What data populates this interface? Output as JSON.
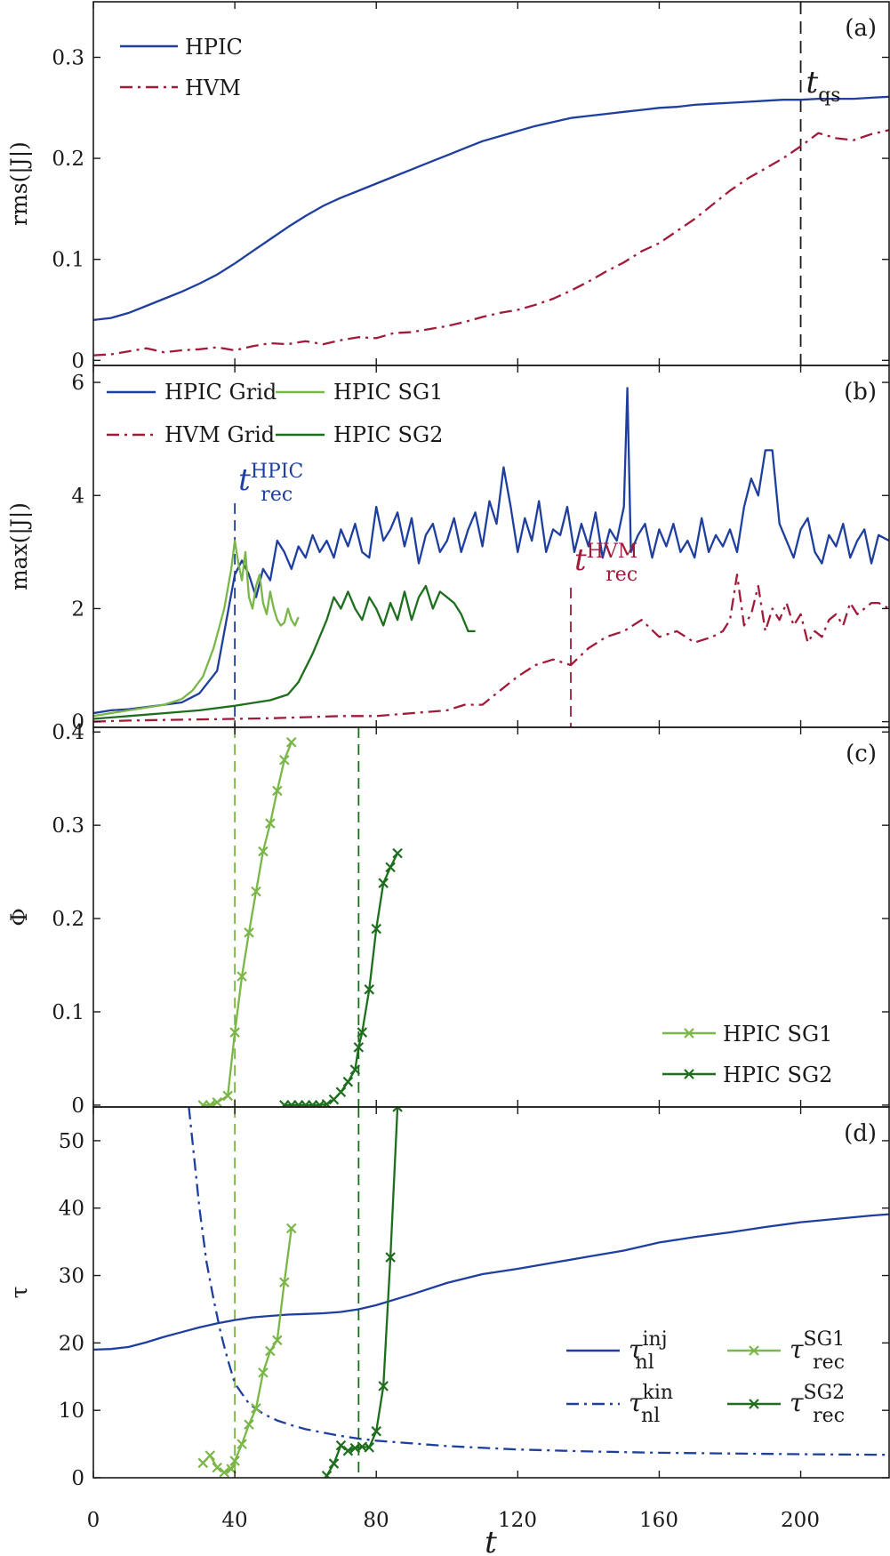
{
  "figure": {
    "x_tick_labels": [
      "0",
      "40",
      "80",
      "120",
      "160",
      "200"
    ],
    "x_label": "t"
  },
  "chart_data": [
    {
      "type": "line",
      "panel": "(a)",
      "ylabel": "rms(|J|)",
      "xlim": [
        0,
        225
      ],
      "ylim": [
        -0.005,
        0.355
      ],
      "y_ticks": [
        0,
        0.1,
        0.2,
        0.3
      ],
      "y_tick_labels": [
        "0",
        "0.1",
        "0.2",
        "0.3"
      ],
      "legend_position": "top-left",
      "series": [
        {
          "name": "HPIC",
          "color": "#1f3f9f",
          "style": "solid",
          "x": [
            0,
            5,
            10,
            15,
            20,
            25,
            30,
            35,
            40,
            45,
            50,
            55,
            60,
            65,
            70,
            75,
            80,
            85,
            90,
            95,
            100,
            105,
            110,
            115,
            120,
            125,
            130,
            135,
            140,
            145,
            150,
            155,
            160,
            165,
            170,
            175,
            180,
            185,
            190,
            195,
            200,
            205,
            210,
            215,
            220,
            225
          ],
          "y": [
            0.04,
            0.042,
            0.047,
            0.054,
            0.061,
            0.068,
            0.076,
            0.085,
            0.096,
            0.108,
            0.12,
            0.132,
            0.143,
            0.153,
            0.161,
            0.168,
            0.175,
            0.182,
            0.189,
            0.196,
            0.203,
            0.21,
            0.217,
            0.222,
            0.227,
            0.232,
            0.236,
            0.24,
            0.242,
            0.244,
            0.246,
            0.248,
            0.25,
            0.251,
            0.253,
            0.254,
            0.255,
            0.256,
            0.257,
            0.258,
            0.258,
            0.259,
            0.259,
            0.259,
            0.26,
            0.261
          ]
        },
        {
          "name": "HVM",
          "color": "#a01a3a",
          "style": "dashdot",
          "x": [
            0,
            5,
            10,
            15,
            20,
            25,
            30,
            35,
            40,
            45,
            50,
            55,
            60,
            65,
            70,
            75,
            80,
            85,
            90,
            95,
            100,
            105,
            110,
            115,
            120,
            125,
            130,
            135,
            140,
            145,
            150,
            155,
            160,
            165,
            170,
            175,
            180,
            185,
            190,
            195,
            200,
            205,
            210,
            215,
            220,
            225
          ],
          "y": [
            0.005,
            0.006,
            0.009,
            0.012,
            0.008,
            0.01,
            0.011,
            0.013,
            0.01,
            0.014,
            0.017,
            0.016,
            0.019,
            0.016,
            0.02,
            0.023,
            0.022,
            0.027,
            0.028,
            0.031,
            0.034,
            0.038,
            0.043,
            0.047,
            0.05,
            0.055,
            0.061,
            0.069,
            0.078,
            0.088,
            0.097,
            0.108,
            0.116,
            0.128,
            0.14,
            0.154,
            0.168,
            0.18,
            0.19,
            0.2,
            0.212,
            0.225,
            0.22,
            0.218,
            0.224,
            0.228
          ]
        }
      ],
      "annotations": [
        {
          "text": "t",
          "subscript": "qs",
          "x": 200,
          "line_color": "#1a1a1a"
        }
      ]
    },
    {
      "type": "line",
      "panel": "(b)",
      "ylabel": "max(|J|)",
      "xlim": [
        0,
        225
      ],
      "ylim": [
        -0.1,
        6.3
      ],
      "y_ticks": [
        0,
        2,
        4,
        6
      ],
      "y_tick_labels": [
        "0",
        "2",
        "4",
        "6"
      ],
      "legend_position": "top-left",
      "series": [
        {
          "name": "HPIC Grid",
          "color": "#1f3f9f",
          "style": "solid",
          "x": [
            0,
            5,
            10,
            15,
            20,
            25,
            30,
            35,
            40,
            42,
            44,
            46,
            48,
            50,
            52,
            54,
            56,
            58,
            60,
            62,
            64,
            66,
            68,
            70,
            72,
            74,
            76,
            78,
            80,
            82,
            84,
            86,
            88,
            90,
            92,
            94,
            96,
            98,
            100,
            102,
            104,
            106,
            108,
            110,
            112,
            114,
            116,
            118,
            120,
            122,
            124,
            126,
            128,
            130,
            132,
            134,
            136,
            138,
            140,
            142,
            144,
            146,
            148,
            150,
            151,
            152,
            154,
            156,
            158,
            160,
            162,
            164,
            166,
            168,
            170,
            172,
            174,
            176,
            178,
            180,
            182,
            184,
            186,
            188,
            190,
            192,
            194,
            196,
            198,
            200,
            202,
            204,
            206,
            208,
            210,
            212,
            214,
            216,
            218,
            220,
            222,
            225
          ],
          "y": [
            0.15,
            0.2,
            0.22,
            0.26,
            0.3,
            0.34,
            0.5,
            0.9,
            2.6,
            2.85,
            2.6,
            2.2,
            2.7,
            2.5,
            3.2,
            3.0,
            2.7,
            3.1,
            2.9,
            3.3,
            3.0,
            3.2,
            2.9,
            3.4,
            3.1,
            3.5,
            3.0,
            2.9,
            3.8,
            3.2,
            3.4,
            3.7,
            3.1,
            3.6,
            2.8,
            3.3,
            3.5,
            3.0,
            3.2,
            3.6,
            3.0,
            3.4,
            3.7,
            3.1,
            3.9,
            3.5,
            4.5,
            3.8,
            3.0,
            3.6,
            3.2,
            3.9,
            3.0,
            3.4,
            3.3,
            3.8,
            3.0,
            3.5,
            3.1,
            3.7,
            2.9,
            3.4,
            3.2,
            3.8,
            5.9,
            3.0,
            3.3,
            3.5,
            2.9,
            3.4,
            3.1,
            3.5,
            3.0,
            3.2,
            2.9,
            3.6,
            3.0,
            3.3,
            3.1,
            3.4,
            3.0,
            3.8,
            4.3,
            4.0,
            4.8,
            4.8,
            3.5,
            3.2,
            2.9,
            3.4,
            3.6,
            3.0,
            2.8,
            3.3,
            3.1,
            3.5,
            2.9,
            3.2,
            3.4,
            2.8,
            3.3,
            3.2
          ]
        },
        {
          "name": "HVM Grid",
          "color": "#a01a3a",
          "style": "dashdot",
          "x": [
            0,
            10,
            20,
            30,
            40,
            50,
            60,
            70,
            80,
            90,
            100,
            105,
            110,
            115,
            120,
            125,
            130,
            135,
            140,
            145,
            150,
            155,
            160,
            165,
            170,
            175,
            178,
            180,
            182,
            184,
            186,
            188,
            190,
            192,
            194,
            196,
            198,
            200,
            202,
            204,
            206,
            208,
            210,
            212,
            214,
            216,
            218,
            220,
            222,
            225
          ],
          "y": [
            0.0,
            0.02,
            0.03,
            0.04,
            0.05,
            0.06,
            0.08,
            0.1,
            0.1,
            0.15,
            0.2,
            0.3,
            0.3,
            0.55,
            0.8,
            1.0,
            1.1,
            1.0,
            1.3,
            1.5,
            1.6,
            1.8,
            1.5,
            1.6,
            1.4,
            1.5,
            1.6,
            1.8,
            2.6,
            1.7,
            1.9,
            2.4,
            1.6,
            2.0,
            1.8,
            2.1,
            1.7,
            1.9,
            1.4,
            1.6,
            1.5,
            1.8,
            1.9,
            1.7,
            2.1,
            1.9,
            2.0,
            2.1,
            2.1,
            2.0
          ]
        },
        {
          "name": "HPIC SG1",
          "color": "#7ab648",
          "style": "solid",
          "x": [
            0,
            10,
            20,
            25,
            28,
            31,
            34,
            37,
            39,
            40,
            41,
            42,
            43,
            44,
            45,
            46,
            47,
            48,
            49,
            50,
            51,
            52,
            53,
            54,
            55,
            56,
            57,
            58
          ],
          "y": [
            0.1,
            0.2,
            0.3,
            0.4,
            0.55,
            0.8,
            1.3,
            2.0,
            2.7,
            3.2,
            2.8,
            2.5,
            3.0,
            2.2,
            2.0,
            2.4,
            2.6,
            2.1,
            1.9,
            2.3,
            2.0,
            1.8,
            1.7,
            1.75,
            2.0,
            1.8,
            1.7,
            1.85
          ]
        },
        {
          "name": "HPIC SG2",
          "color": "#1e6e1e",
          "style": "solid",
          "x": [
            0,
            10,
            20,
            30,
            40,
            50,
            55,
            58,
            62,
            66,
            68,
            70,
            72,
            74,
            76,
            78,
            80,
            82,
            84,
            86,
            88,
            90,
            92,
            94,
            96,
            98,
            100,
            102,
            104,
            106,
            108
          ],
          "y": [
            0.05,
            0.1,
            0.15,
            0.2,
            0.28,
            0.38,
            0.48,
            0.7,
            1.2,
            1.8,
            2.2,
            2.0,
            2.3,
            2.0,
            1.8,
            2.2,
            2.0,
            1.7,
            2.1,
            1.8,
            2.3,
            1.8,
            2.2,
            2.4,
            2.0,
            2.3,
            2.2,
            2.1,
            1.9,
            1.6,
            1.6
          ]
        }
      ],
      "annotations": [
        {
          "text": "t",
          "subscript": "rec",
          "superscript": "HPIC",
          "x": 40,
          "color": "#1f3f9f"
        },
        {
          "text": "t",
          "subscript": "rec",
          "superscript": "HVM",
          "x": 135,
          "color": "#a01a3a"
        }
      ]
    },
    {
      "type": "line",
      "panel": "(c)",
      "ylabel": "Φ",
      "xlim": [
        0,
        225
      ],
      "ylim": [
        -0.002,
        0.405
      ],
      "y_ticks": [
        0,
        0.1,
        0.2,
        0.3,
        0.4
      ],
      "y_tick_labels": [
        "0",
        "0.1",
        "0.2",
        "0.3",
        "0.4"
      ],
      "legend_position": "bottom-right",
      "series": [
        {
          "name": "HPIC SG1",
          "color": "#7ab648",
          "style": "solid-x",
          "x": [
            31,
            33,
            35,
            38,
            40,
            42,
            44,
            46,
            48,
            50,
            52,
            54,
            56
          ],
          "y": [
            0.0,
            0.0,
            0.003,
            0.01,
            0.078,
            0.138,
            0.185,
            0.229,
            0.272,
            0.302,
            0.337,
            0.37,
            0.389
          ]
        },
        {
          "name": "HPIC SG2",
          "color": "#1e6e1e",
          "style": "solid-x",
          "x": [
            54,
            56,
            58,
            60,
            62,
            64,
            66,
            68,
            70,
            72,
            74,
            75,
            76,
            78,
            80,
            82,
            84,
            86
          ],
          "y": [
            0.0,
            0.0,
            0.0,
            0.0,
            0.0,
            0.0,
            0.001,
            0.006,
            0.014,
            0.025,
            0.038,
            0.062,
            0.078,
            0.124,
            0.189,
            0.238,
            0.255,
            0.27
          ]
        }
      ]
    },
    {
      "type": "line",
      "panel": "(d)",
      "ylabel": "τ",
      "xlim": [
        0,
        225
      ],
      "ylim": [
        0,
        55
      ],
      "y_ticks": [
        0,
        10,
        20,
        30,
        40,
        50
      ],
      "y_tick_labels": [
        "0",
        "10",
        "20",
        "30",
        "40",
        "50"
      ],
      "legend_position": "bottom-right",
      "series": [
        {
          "name": "τ_nl^inj",
          "base": "τ",
          "sub": "nl",
          "sup": "inj",
          "color": "#1f3f9f",
          "style": "solid",
          "x": [
            0,
            5,
            10,
            15,
            20,
            25,
            30,
            35,
            40,
            45,
            50,
            55,
            60,
            65,
            70,
            75,
            80,
            90,
            100,
            110,
            120,
            130,
            140,
            150,
            160,
            170,
            180,
            190,
            200,
            210,
            220,
            225
          ],
          "y": [
            19,
            19.1,
            19.4,
            20.1,
            20.9,
            21.6,
            22.3,
            22.9,
            23.4,
            23.8,
            24.0,
            24.2,
            24.3,
            24.4,
            24.6,
            25.0,
            25.6,
            27.2,
            28.9,
            30.2,
            31.0,
            31.9,
            32.8,
            33.7,
            34.9,
            35.7,
            36.4,
            37.2,
            37.9,
            38.4,
            38.9,
            39.1
          ]
        },
        {
          "name": "τ_nl^kin",
          "base": "τ",
          "sub": "nl",
          "sup": "kin",
          "color": "#1f3f9f",
          "style": "dashdot",
          "x": [
            27,
            28,
            30,
            32,
            34,
            36,
            38,
            40,
            44,
            48,
            52,
            56,
            60,
            65,
            70,
            75,
            80,
            90,
            100,
            120,
            140,
            160,
            180,
            200,
            225
          ],
          "y": [
            55,
            50,
            40,
            32,
            26.5,
            21.5,
            17.5,
            14.0,
            11.0,
            9.5,
            8.5,
            7.8,
            7.2,
            6.7,
            6.2,
            5.8,
            5.5,
            5.1,
            4.7,
            4.2,
            3.9,
            3.7,
            3.6,
            3.5,
            3.4
          ]
        },
        {
          "name": "τ_rec^SG1",
          "base": "τ",
          "sub": "rec",
          "sup": "SG1",
          "color": "#7ab648",
          "style": "solid-x",
          "x": [
            31,
            33,
            35,
            37,
            39,
            40,
            42,
            44,
            46,
            48,
            50,
            52,
            54,
            56
          ],
          "y": [
            2.2,
            3.3,
            1.5,
            0.8,
            1.3,
            2.5,
            5.0,
            7.9,
            10.3,
            15.6,
            18.8,
            20.4,
            29.0,
            37.0
          ]
        },
        {
          "name": "τ_rec^SG2",
          "base": "τ",
          "sub": "rec",
          "sup": "SG2",
          "color": "#1e6e1e",
          "style": "solid-x",
          "x": [
            66,
            68,
            70,
            72,
            74,
            76,
            78,
            80,
            82,
            84,
            86
          ],
          "y": [
            0.3,
            2.1,
            4.8,
            4.0,
            4.4,
            4.6,
            4.5,
            6.9,
            13.6,
            32.7,
            55
          ]
        }
      ]
    }
  ],
  "panel_labels": [
    "(a)",
    "(b)",
    "(c)",
    "(d)"
  ]
}
